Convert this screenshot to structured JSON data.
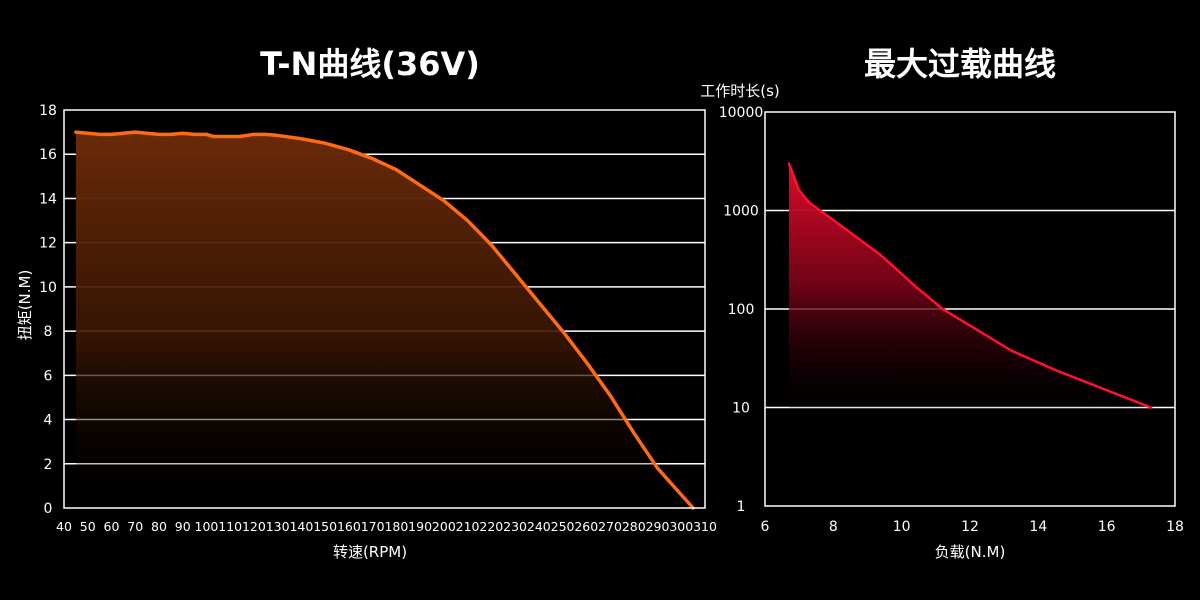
{
  "chart_data": [
    {
      "type": "area",
      "title": "T-N曲线(36V)",
      "xlabel": "转速(RPM)",
      "ylabel": "扭矩(N.M)",
      "xlim": [
        40,
        310
      ],
      "ylim": [
        0,
        18
      ],
      "xticks": [
        40,
        50,
        60,
        70,
        80,
        90,
        100,
        110,
        120,
        130,
        140,
        150,
        160,
        170,
        180,
        190,
        200,
        210,
        220,
        230,
        240,
        250,
        260,
        270,
        280,
        290,
        300,
        310
      ],
      "yticks": [
        0,
        2,
        4,
        6,
        8,
        10,
        12,
        14,
        16,
        18
      ],
      "grid": "horizontal",
      "line_color": "#ff6a14",
      "fill_top_color": "#6a2a08",
      "series": [
        {
          "x": [
            45,
            50,
            55,
            60,
            65,
            70,
            75,
            80,
            85,
            90,
            95,
            100,
            103,
            108,
            114,
            120,
            125,
            130,
            140,
            150,
            160,
            170,
            180,
            190,
            200,
            210,
            220,
            230,
            240,
            250,
            260,
            270,
            280,
            290,
            300,
            305
          ],
          "y": [
            17.0,
            16.95,
            16.9,
            16.9,
            16.95,
            17.0,
            16.95,
            16.9,
            16.9,
            16.95,
            16.9,
            16.9,
            16.8,
            16.8,
            16.8,
            16.9,
            16.9,
            16.85,
            16.7,
            16.5,
            16.2,
            15.8,
            15.3,
            14.6,
            13.9,
            13.0,
            11.9,
            10.6,
            9.3,
            8.0,
            6.6,
            5.1,
            3.4,
            1.8,
            0.6,
            0.0
          ]
        }
      ]
    },
    {
      "type": "area",
      "title": "最大过载曲线",
      "xlabel": "负载(N.M)",
      "ylabel": "工作时长(s)",
      "yscale": "log",
      "xlim": [
        6,
        18
      ],
      "ylim": [
        1,
        10000
      ],
      "xticks": [
        6,
        8,
        10,
        12,
        14,
        16,
        18
      ],
      "yticks": [
        1,
        10,
        100,
        1000,
        10000
      ],
      "grid": "horizontal",
      "line_color": "#ff1030",
      "fill_top_color": "#e00a2a",
      "series": [
        {
          "x": [
            6.7,
            7.0,
            7.3,
            8.0,
            9.4,
            10.4,
            11.2,
            12.4,
            13.2,
            14.5,
            16.0,
            17.3
          ],
          "y": [
            3000,
            1600,
            1200,
            800,
            350,
            170,
            100,
            56,
            38,
            24,
            15,
            10
          ]
        }
      ]
    }
  ]
}
